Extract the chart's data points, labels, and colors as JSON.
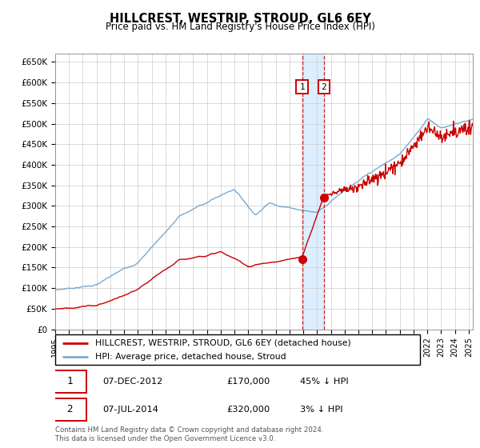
{
  "title": "HILLCREST, WESTRIP, STROUD, GL6 6EY",
  "subtitle": "Price paid vs. HM Land Registry's House Price Index (HPI)",
  "ylim": [
    0,
    670000
  ],
  "yticks": [
    0,
    50000,
    100000,
    150000,
    200000,
    250000,
    300000,
    350000,
    400000,
    450000,
    500000,
    550000,
    600000,
    650000
  ],
  "ytick_labels": [
    "£0",
    "£50K",
    "£100K",
    "£150K",
    "£200K",
    "£250K",
    "£300K",
    "£350K",
    "£400K",
    "£450K",
    "£500K",
    "£550K",
    "£600K",
    "£650K"
  ],
  "sale1_year": 2012.92,
  "sale1_price": 170000,
  "sale2_year": 2014.5,
  "sale2_price": 320000,
  "legend_line1": "HILLCREST, WESTRIP, STROUD, GL6 6EY (detached house)",
  "legend_line2": "HPI: Average price, detached house, Stroud",
  "footer": "Contains HM Land Registry data © Crown copyright and database right 2024.\nThis data is licensed under the Open Government Licence v3.0.",
  "hpi_color": "#7aaad0",
  "price_color": "#cc0000",
  "highlight_color": "#ddeeff",
  "xmin": 1995,
  "xmax": 2025.3
}
